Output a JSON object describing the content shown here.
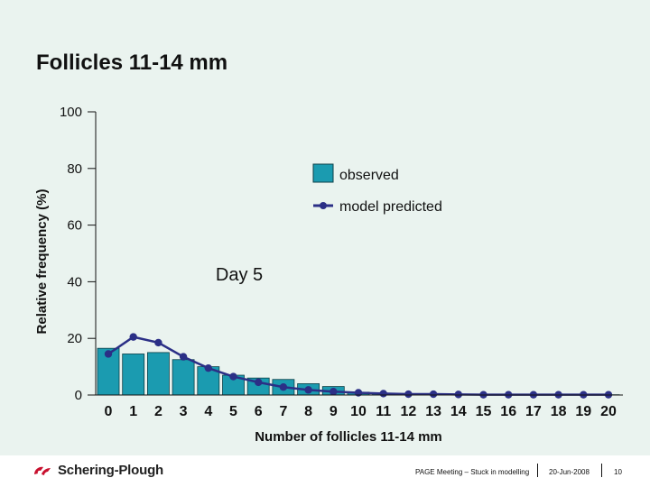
{
  "slide_title": "Follicles 11-14 mm",
  "colors": {
    "background": "#eaf3ef",
    "bar_fill": "#1b9bb0",
    "bar_stroke": "#0c3f47",
    "line": "#2b2f86",
    "logo": "#c8102e"
  },
  "chart_data": {
    "type": "bar",
    "title": "Follicles 11-14 mm",
    "annotation": "Day 5",
    "xlabel": "Number of follicles 11-14 mm",
    "ylabel": "Relative frequency (%)",
    "ylim": [
      0,
      100
    ],
    "y_ticks": [
      0,
      20,
      40,
      60,
      80,
      100
    ],
    "categories": [
      "0",
      "1",
      "2",
      "3",
      "4",
      "5",
      "6",
      "7",
      "8",
      "9",
      "10",
      "11",
      "12",
      "13",
      "14",
      "15",
      "16",
      "17",
      "18",
      "19",
      "20"
    ],
    "legend_position": "top-right",
    "series": [
      {
        "name": "observed",
        "type": "bar",
        "values": [
          16.5,
          14.5,
          15,
          12.5,
          10,
          7,
          6,
          5.5,
          4,
          3,
          1,
          0.5,
          0.3,
          0.5,
          0.2,
          0.2,
          0.2,
          0.1,
          0.1,
          0.1,
          0.1
        ]
      },
      {
        "name": "model predicted",
        "type": "line",
        "values": [
          14.5,
          20.5,
          18.5,
          13.5,
          9.5,
          6.5,
          4.5,
          2.8,
          1.8,
          1.2,
          0.8,
          0.5,
          0.3,
          0.3,
          0.2,
          0.1,
          0.1,
          0.1,
          0.1,
          0.1,
          0.1
        ]
      }
    ]
  },
  "footer": {
    "company": "Schering-Plough",
    "meeting": "PAGE Meeting – Stuck in modelling",
    "date": "20-Jun-2008",
    "page": "10"
  }
}
